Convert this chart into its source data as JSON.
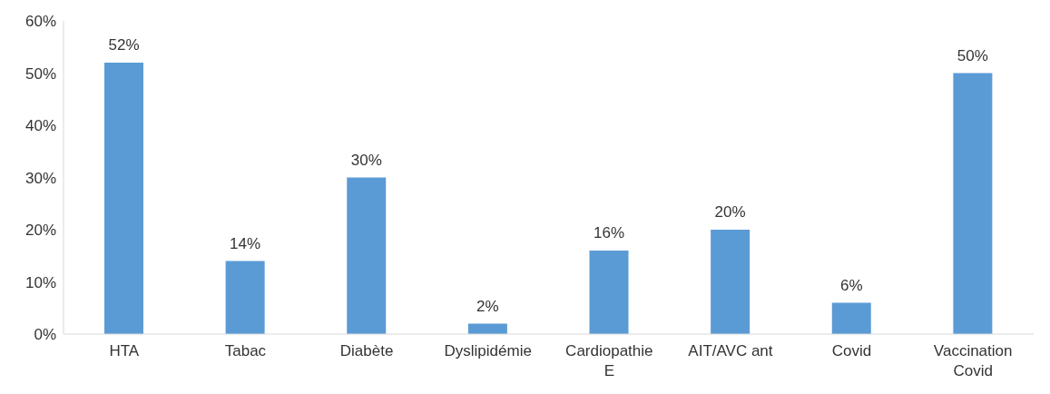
{
  "chart_data": {
    "type": "bar",
    "categories": [
      "HTA",
      "Tabac",
      "Diabète",
      "Dyslipidémie",
      "Cardiopathie E",
      "AIT/AVC ant",
      "Covid",
      "Vaccination Covid"
    ],
    "values": [
      52,
      14,
      30,
      2,
      16,
      20,
      6,
      50
    ],
    "value_labels": [
      "52%",
      "14%",
      "30%",
      "2%",
      "16%",
      "20%",
      "6%",
      "50%"
    ],
    "color": "#5b9bd5",
    "ylim": [
      0,
      60
    ],
    "yticks": [
      {
        "value": 0,
        "label": "0%"
      },
      {
        "value": 10,
        "label": "10%"
      },
      {
        "value": 20,
        "label": "20%"
      },
      {
        "value": 30,
        "label": "30%"
      },
      {
        "value": 40,
        "label": "40%"
      },
      {
        "value": 50,
        "label": "50%"
      },
      {
        "value": 60,
        "label": "60%"
      }
    ],
    "grid": false,
    "legend": false
  }
}
